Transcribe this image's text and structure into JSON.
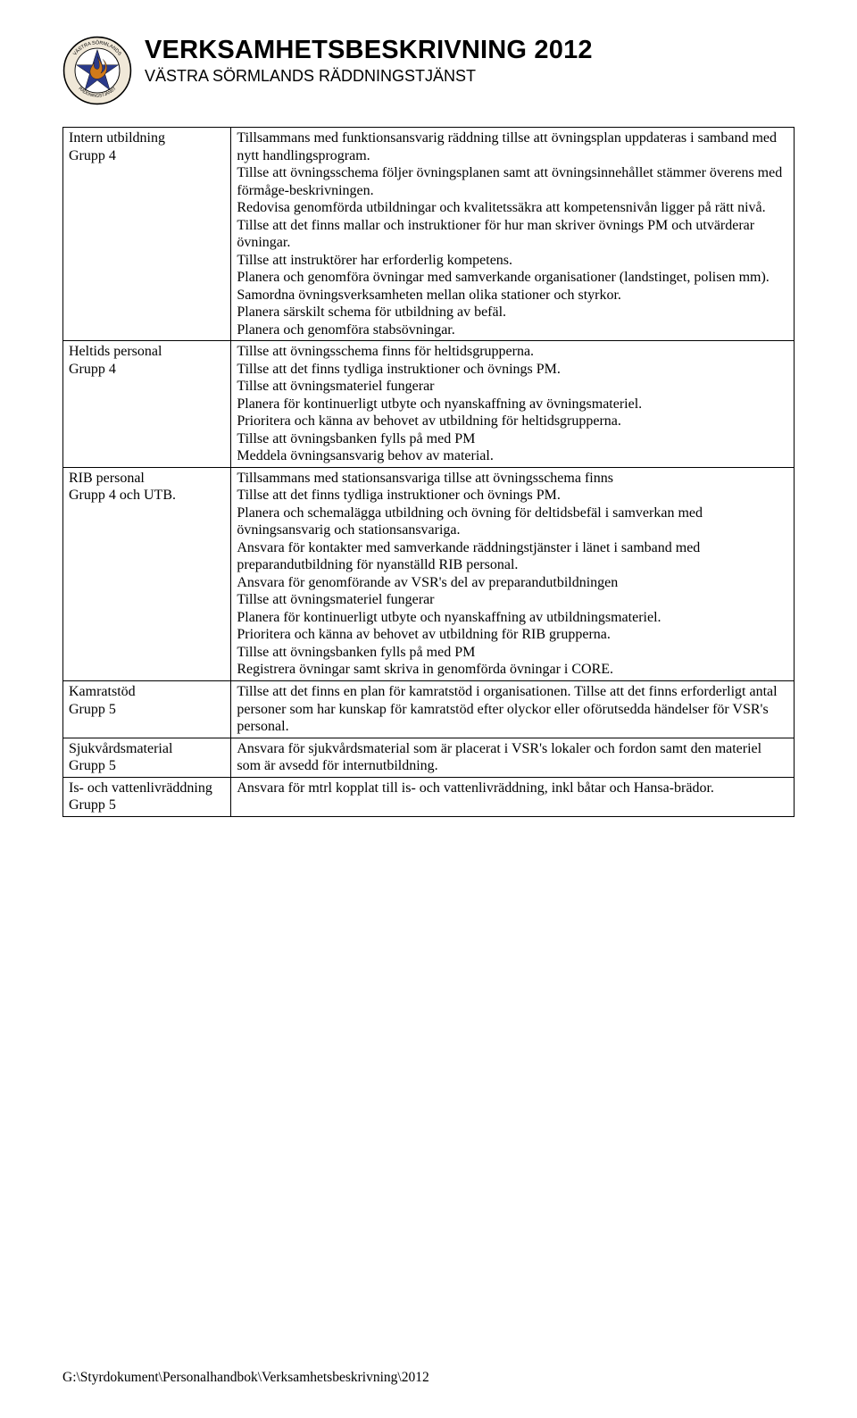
{
  "header": {
    "title": "VERKSAMHETSBESKRIVNING 2012",
    "subtitle": "VÄSTRA SÖRMLANDS RÄDDNINGSTJÄNST"
  },
  "logo": {
    "ring_text_top": "VÄSTRA SÖRMLANDS",
    "ring_text_bottom": "RÄDDNINGSTJÄNST",
    "ring_fill": "#f0e8d8",
    "ring_stroke": "#000000",
    "inner_fill": "#ffffff",
    "flame_fill": "#d07a1a",
    "star_fill": "#2b3a8a"
  },
  "rows": [
    {
      "left": [
        "Intern utbildning",
        "Grupp 4"
      ],
      "right": [
        "Tillsammans med funktionsansvarig räddning tillse att övningsplan uppdateras i samband med nytt handlingsprogram.",
        "Tillse att övningsschema följer övningsplanen samt att övningsinnehållet stämmer överens med förmåge-beskrivningen.",
        "Redovisa genomförda utbildningar och kvalitetssäkra att kompetensnivån ligger på rätt nivå.",
        "Tillse att det finns mallar och instruktioner för hur man skriver övnings PM och utvärderar övningar.",
        "Tillse att instruktörer har erforderlig kompetens.",
        "Planera och genomföra övningar med samverkande organisationer (landstinget, polisen mm).",
        "Samordna övningsverksamheten mellan olika stationer och styrkor.",
        "Planera särskilt schema för utbildning av befäl.",
        "Planera och genomföra stabsövningar."
      ]
    },
    {
      "left": [
        "Heltids personal",
        "Grupp 4"
      ],
      "right": [
        "Tillse att övningsschema finns för heltidsgrupperna.",
        "Tillse att det finns tydliga instruktioner och övnings PM.",
        "Tillse att övningsmateriel fungerar",
        "Planera för kontinuerligt utbyte och nyanskaffning av övningsmateriel.",
        "Prioritera och känna av behovet av utbildning för heltidsgrupperna.",
        "Tillse att övningsbanken fylls på med PM",
        "Meddela övningsansvarig behov av material."
      ]
    },
    {
      "left": [
        "RIB personal",
        "Grupp 4 och UTB."
      ],
      "right": [
        "Tillsammans med stationsansvariga tillse att övningsschema finns",
        "Tillse att det finns tydliga instruktioner och övnings PM.",
        "Planera och schemalägga utbildning och övning för deltidsbefäl i samverkan med övningsansvarig och stationsansvariga.",
        "Ansvara för kontakter med samverkande räddningstjänster i länet i samband med preparandutbildning för nyanställd RIB personal.",
        "Ansvara för genomförande av VSR's del av preparandutbildningen",
        "Tillse att övningsmateriel fungerar",
        "Planera för kontinuerligt utbyte och nyanskaffning av utbildningsmateriel.",
        "Prioritera och känna av behovet av utbildning för RIB grupperna.",
        "Tillse att övningsbanken fylls på med PM",
        "Registrera övningar samt skriva in genomförda övningar i CORE."
      ]
    },
    {
      "left": [
        "Kamratstöd",
        "Grupp 5"
      ],
      "right": [
        "Tillse att det finns en plan för kamratstöd i organisationen. Tillse att det finns erforderligt antal personer som har kunskap för kamratstöd efter olyckor eller oförutsedda händelser för VSR's personal."
      ]
    },
    {
      "left": [
        "Sjukvårdsmaterial",
        "Grupp 5"
      ],
      "right": [
        "Ansvara för sjukvårdsmaterial som är placerat i VSR's lokaler och fordon samt den materiel som är avsedd för internutbildning."
      ]
    },
    {
      "left": [
        "Is- och vattenlivräddning",
        "Grupp 5"
      ],
      "right": [
        "Ansvara för mtrl kopplat till is- och vattenlivräddning, inkl båtar och Hansa-brädor."
      ]
    }
  ],
  "footer": "G:\\Styrdokument\\Personalhandbok\\Verksamhetsbeskrivning\\2012"
}
